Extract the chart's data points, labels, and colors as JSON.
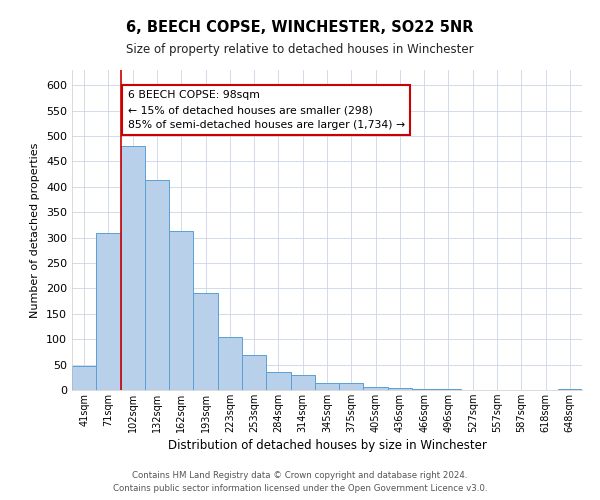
{
  "title": "6, BEECH COPSE, WINCHESTER, SO22 5NR",
  "subtitle": "Size of property relative to detached houses in Winchester",
  "xlabel": "Distribution of detached houses by size in Winchester",
  "ylabel": "Number of detached properties",
  "bar_labels": [
    "41sqm",
    "71sqm",
    "102sqm",
    "132sqm",
    "162sqm",
    "193sqm",
    "223sqm",
    "253sqm",
    "284sqm",
    "314sqm",
    "345sqm",
    "375sqm",
    "405sqm",
    "436sqm",
    "466sqm",
    "496sqm",
    "527sqm",
    "557sqm",
    "587sqm",
    "618sqm",
    "648sqm"
  ],
  "bar_values": [
    47,
    310,
    480,
    413,
    313,
    191,
    105,
    69,
    35,
    30,
    14,
    14,
    5,
    4,
    2,
    1,
    0,
    0,
    0,
    0,
    1
  ],
  "bar_color": "#b8d0ea",
  "bar_edge_color": "#5a9fd4",
  "vline_x": 2,
  "vline_color": "#cc0000",
  "ylim": [
    0,
    630
  ],
  "yticks": [
    0,
    50,
    100,
    150,
    200,
    250,
    300,
    350,
    400,
    450,
    500,
    550,
    600
  ],
  "annotation_title": "6 BEECH COPSE: 98sqm",
  "annotation_line1": "← 15% of detached houses are smaller (298)",
  "annotation_line2": "85% of semi-detached houses are larger (1,734) →",
  "annotation_box_color": "#ffffff",
  "annotation_box_edge": "#cc0000",
  "footer1": "Contains HM Land Registry data © Crown copyright and database right 2024.",
  "footer2": "Contains public sector information licensed under the Open Government Licence v3.0.",
  "bg_color": "#ffffff",
  "grid_color": "#ccd6e8"
}
